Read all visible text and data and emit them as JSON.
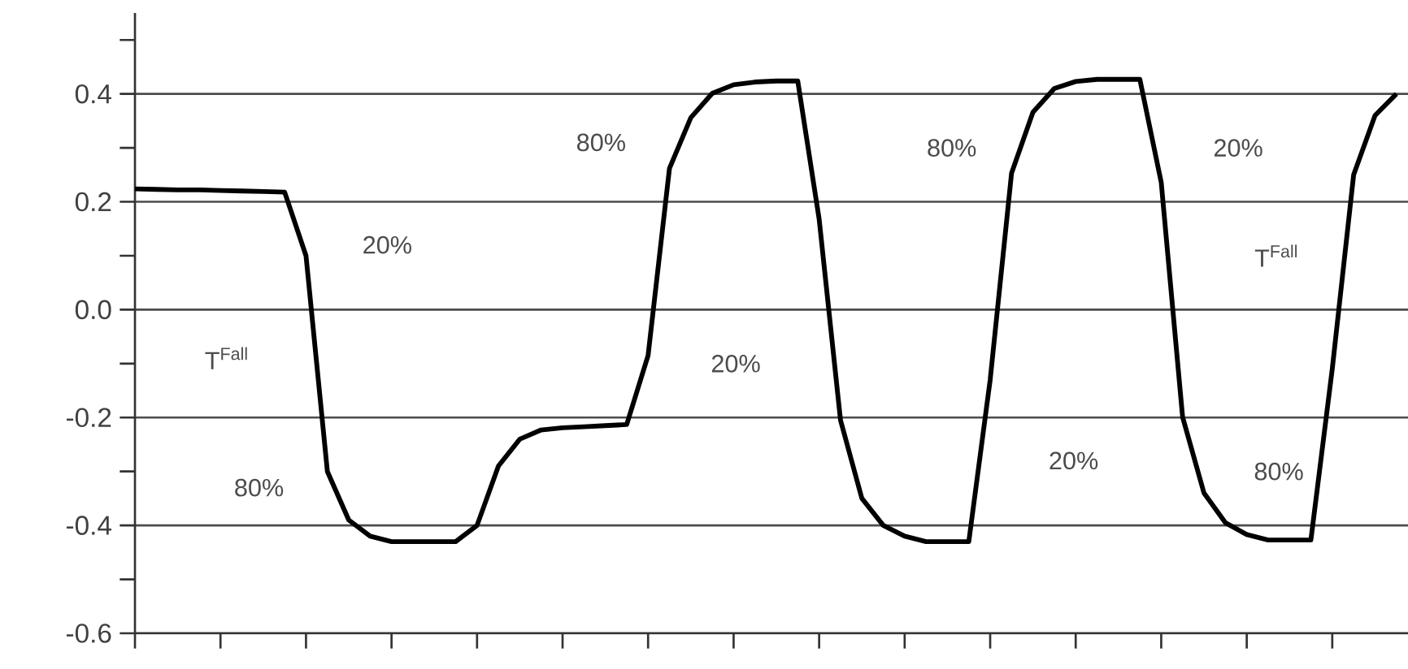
{
  "chart_data": {
    "type": "line",
    "categories": [
      null,
      null,
      null,
      null,
      null,
      null,
      null,
      null,
      null,
      null,
      null,
      null,
      null,
      null,
      null,
      null,
      null,
      null,
      null,
      null,
      null,
      null,
      null,
      null,
      null,
      null,
      null,
      null,
      null,
      null,
      null,
      null,
      null,
      null,
      null,
      null,
      null,
      null,
      null,
      null,
      null,
      null,
      null,
      null,
      null,
      null,
      null,
      null,
      null,
      null,
      null,
      null,
      null,
      null,
      null,
      null,
      null,
      null,
      null,
      null
    ],
    "series": [
      {
        "color": "#000000",
        "values": [
          0.224,
          0.223,
          0.222,
          0.222,
          0.221,
          0.22,
          0.219,
          0.218,
          0.1,
          -0.3,
          -0.39,
          -0.42,
          -0.43,
          -0.43,
          -0.43,
          -0.43,
          -0.4,
          -0.29,
          -0.24,
          -0.223,
          -0.219,
          -0.217,
          -0.215,
          -0.213,
          -0.085,
          0.262,
          0.356,
          0.401,
          0.417,
          0.422,
          0.424,
          0.424,
          0.168,
          -0.205,
          -0.35,
          -0.4,
          -0.42,
          -0.43,
          -0.43,
          -0.43,
          -0.13,
          0.253,
          0.366,
          0.41,
          0.423,
          0.427,
          0.427,
          0.427,
          0.236,
          -0.199,
          -0.34,
          -0.395,
          -0.417,
          -0.427,
          -0.427,
          -0.427,
          -0.11,
          0.25,
          0.36,
          0.4
        ]
      }
    ],
    "ylim": [
      -0.6,
      0.55
    ],
    "yticks": [
      -0.6,
      {
        "value": -0.5,
        "label": null
      },
      -0.4,
      {
        "value": -0.3,
        "label": null
      },
      -0.2,
      {
        "value": -0.1,
        "label": null
      },
      {
        "value": 0,
        "label": "0.0"
      },
      {
        "value": 0.1,
        "label": null
      },
      0.2,
      {
        "value": 0.3,
        "label": null
      },
      0.4,
      {
        "value": 0.5,
        "label": null
      }
    ],
    "tick_labels": "y",
    "grid": "y",
    "annotations": [
      "20%",
      "80%",
      "20%",
      "80%",
      "20%",
      "80%",
      "20%",
      "80%",
      "T$^{Fall}$",
      "T$^{Fall}$"
    ]
  }
}
